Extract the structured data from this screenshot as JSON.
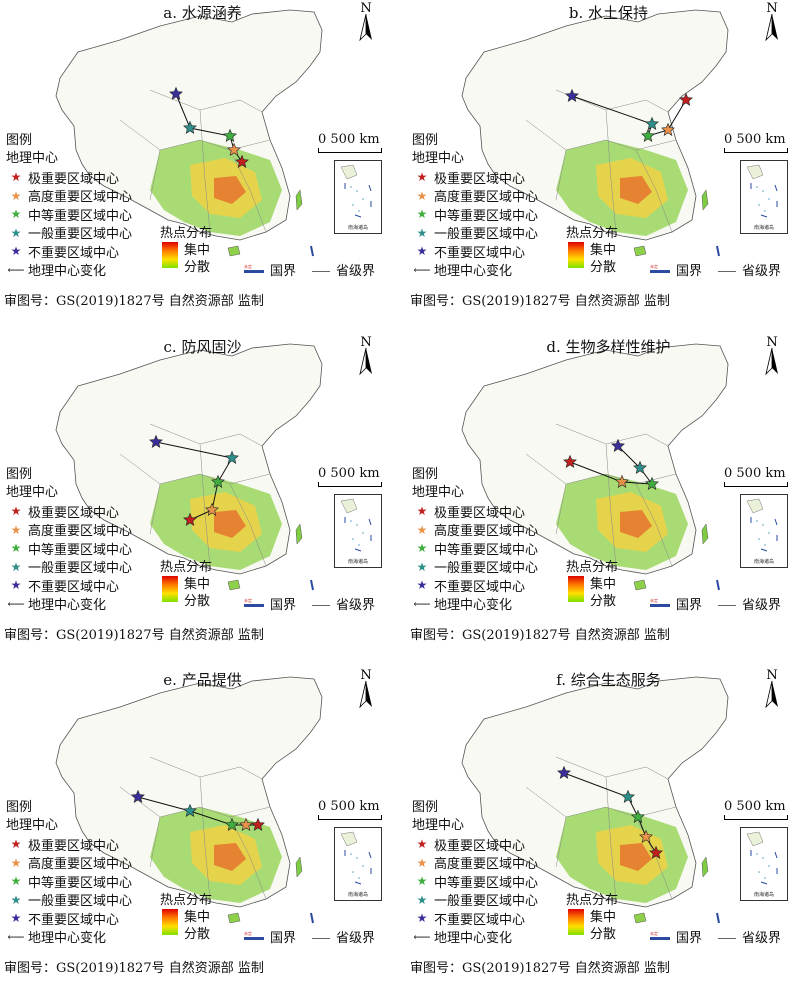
{
  "legend": {
    "title": "图例",
    "subtitle": "地理中心",
    "items": [
      {
        "label": "极重要区域中心",
        "color": "#c0201f"
      },
      {
        "label": "高度重要区域中心",
        "color": "#e8924a"
      },
      {
        "label": "中等重要区域中心",
        "color": "#3fae3f"
      },
      {
        "label": "一般重要区域中心",
        "color": "#2e8f8a"
      },
      {
        "label": "不重要区域中心",
        "color": "#3a2f9a"
      }
    ],
    "change": "地理中心变化"
  },
  "hotspot": {
    "title": "热点分布",
    "high": "集中",
    "low": "分散"
  },
  "boundary": {
    "national": "国界",
    "provincial": "省级界",
    "tiny_label": "未定"
  },
  "scale_label": "0   500 km",
  "north": "N",
  "inset_caption": "南海诸岛",
  "review_number": "审图号：GS(2019)1827号  自然资源部 监制",
  "panels": [
    {
      "title": "a. 水源涵养"
    },
    {
      "title": "b. 水土保持"
    },
    {
      "title": "c. 防风固沙"
    },
    {
      "title": "d. 生物多样性维护"
    },
    {
      "title": "e. 产品提供"
    },
    {
      "title": "f. 综合生态服务"
    }
  ]
}
